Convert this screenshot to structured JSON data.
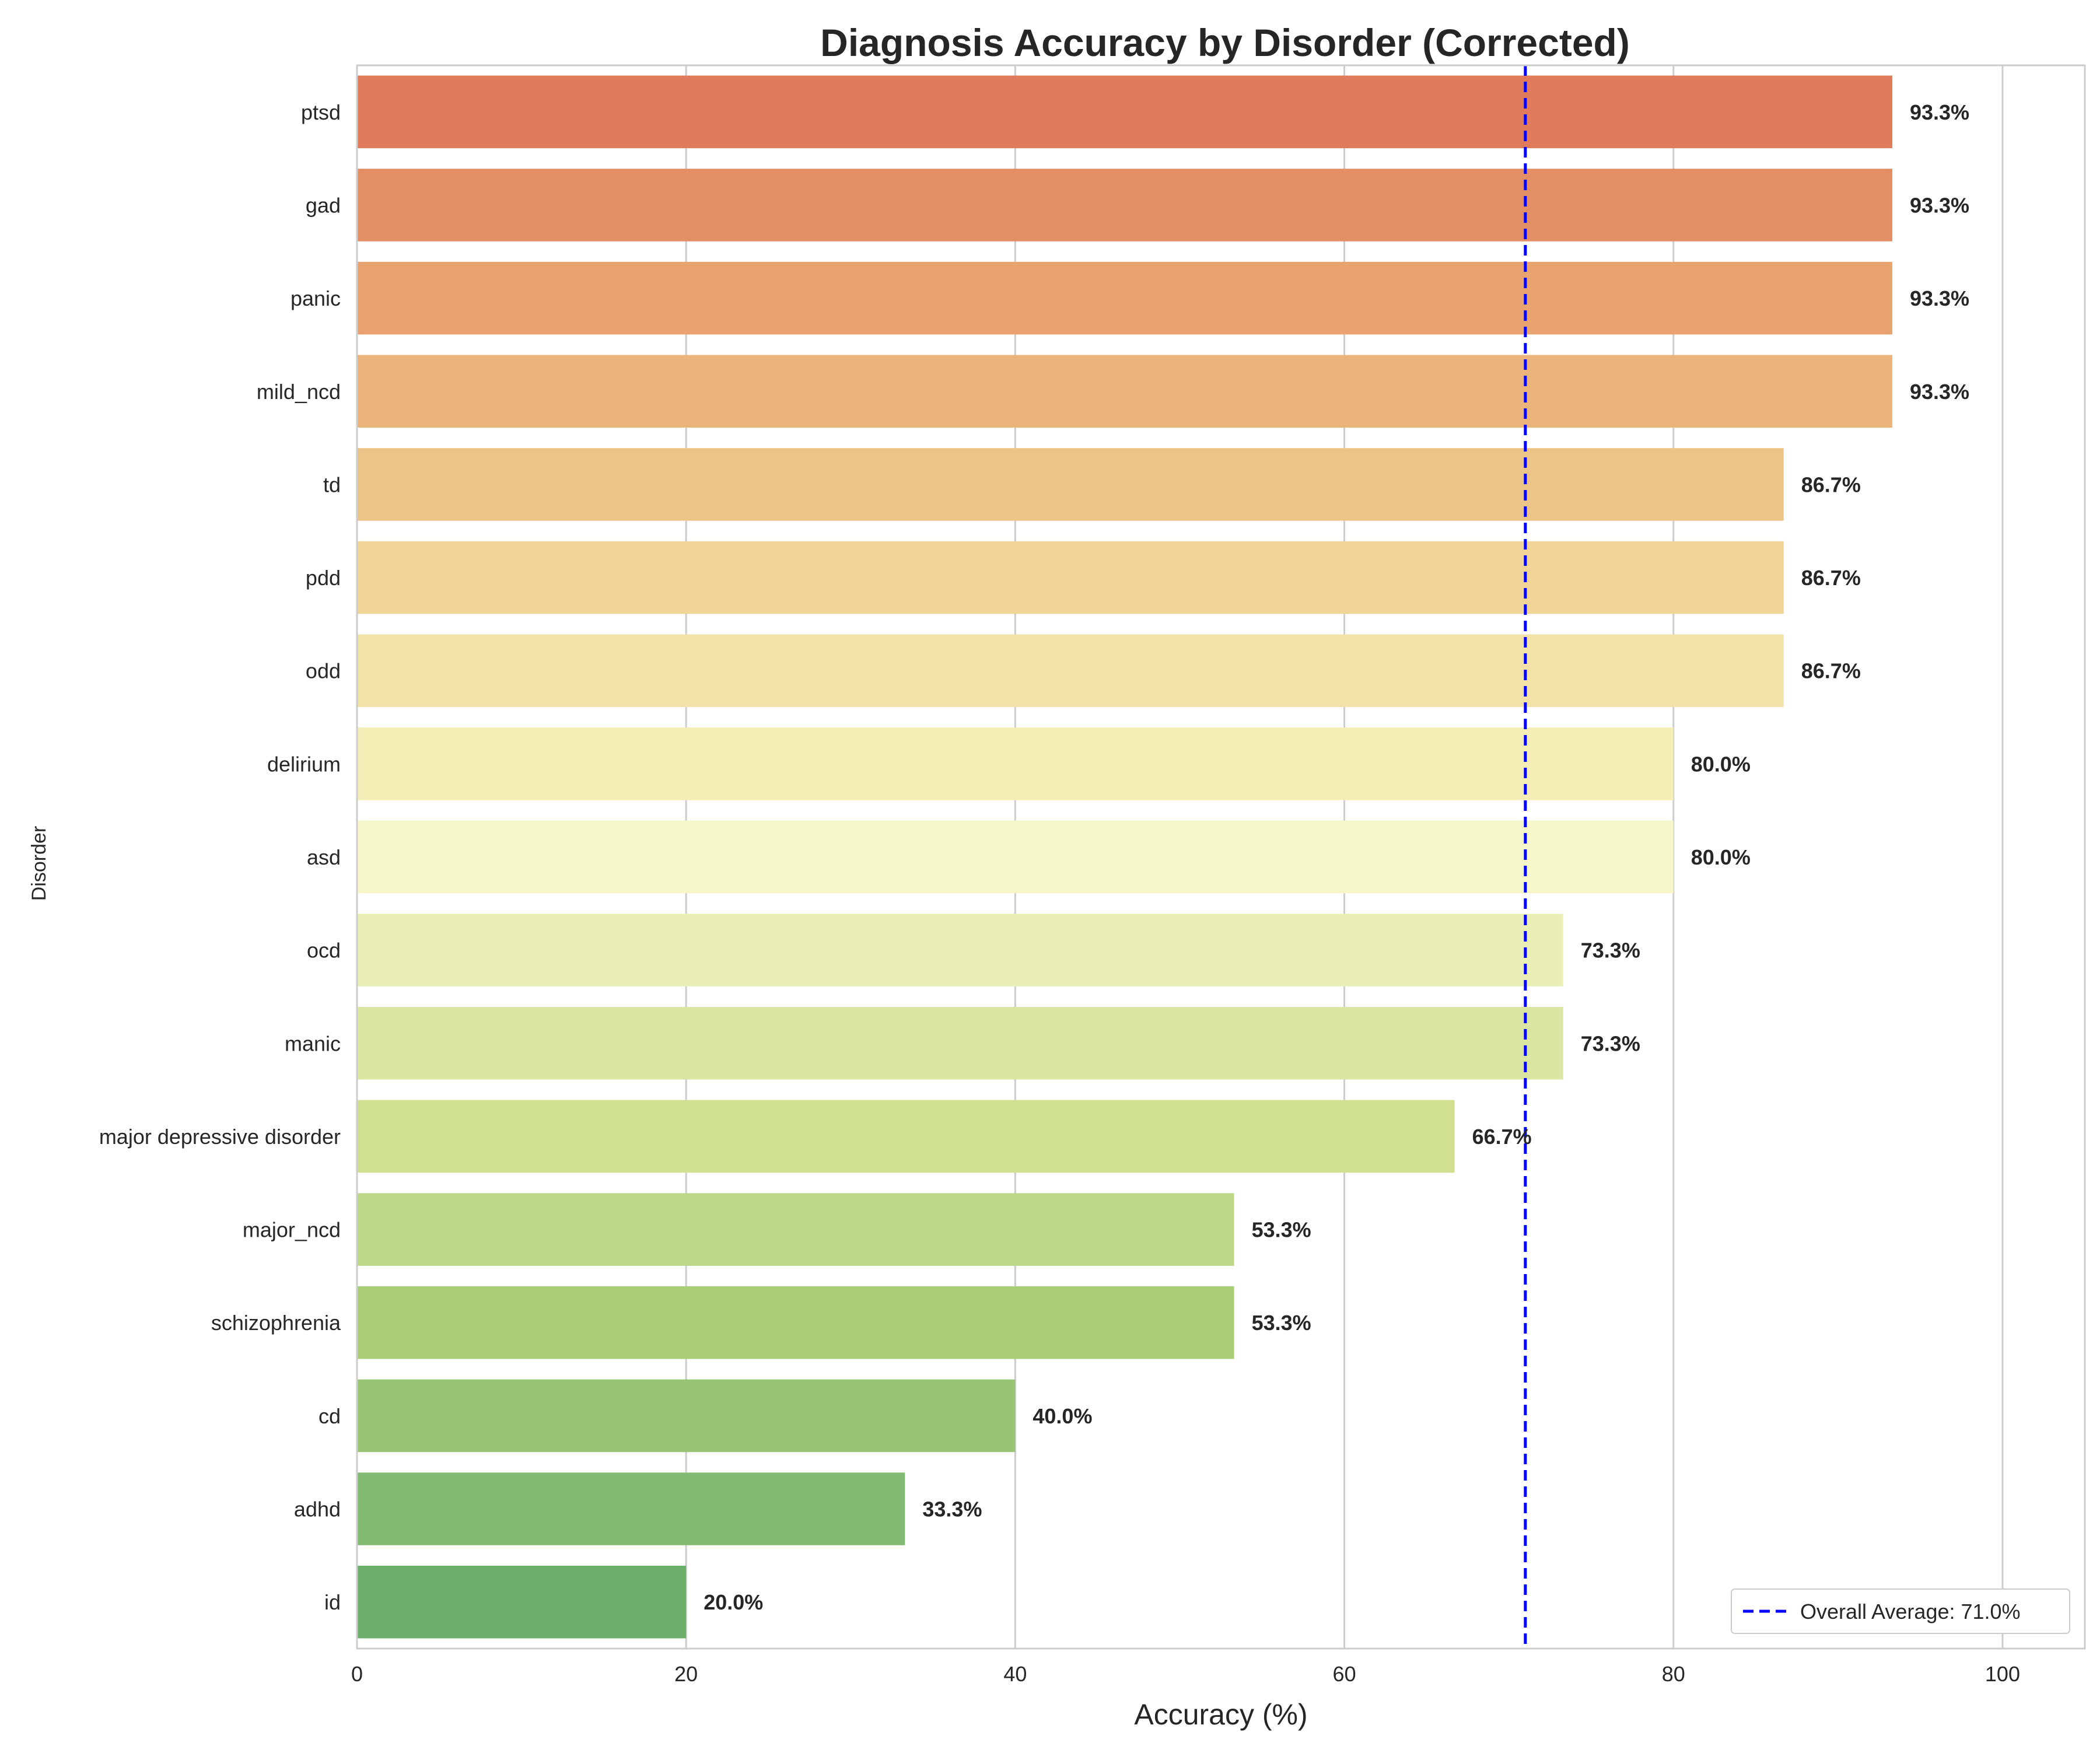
{
  "chart_data": {
    "type": "bar",
    "orientation": "horizontal",
    "title": "Diagnosis Accuracy by Disorder (Corrected)",
    "xlabel": "Accuracy (%)",
    "ylabel": "Disorder",
    "xlim": [
      0,
      105
    ],
    "xticks": [
      0,
      20,
      40,
      60,
      80,
      100
    ],
    "grid": true,
    "categories": [
      "ptsd",
      "gad",
      "panic",
      "mild_ncd",
      "td",
      "pdd",
      "odd",
      "delirium",
      "asd",
      "ocd",
      "manic",
      "major depressive disorder",
      "major_ncd",
      "schizophrenia",
      "cd",
      "adhd",
      "id"
    ],
    "values": [
      93.3,
      93.3,
      93.3,
      93.3,
      86.7,
      86.7,
      86.7,
      80.0,
      80.0,
      73.3,
      73.3,
      66.7,
      53.3,
      53.3,
      40.0,
      33.3,
      20.0
    ],
    "value_labels": [
      "93.3%",
      "93.3%",
      "93.3%",
      "93.3%",
      "86.7%",
      "86.7%",
      "86.7%",
      "80.0%",
      "80.0%",
      "73.3%",
      "73.3%",
      "66.7%",
      "53.3%",
      "53.3%",
      "40.0%",
      "33.3%",
      "20.0%"
    ],
    "colors": [
      "#e07b5b",
      "#e38e64",
      "#e8a36e",
      "#eab47a",
      "#edc487",
      "#f0d597",
      "#f2e2a7",
      "#f4edb5",
      "#f5f7c8",
      "#eaefb5",
      "#dce6a3",
      "#cfe091",
      "#bcd786",
      "#a8cd74",
      "#98c474",
      "#84bb72",
      "#6db06c"
    ],
    "reference_line": {
      "value": 71.0,
      "label": "Overall Average: 71.0%",
      "color": "#0000ff",
      "style": "dashed"
    },
    "legend_position": "bottom-right"
  }
}
